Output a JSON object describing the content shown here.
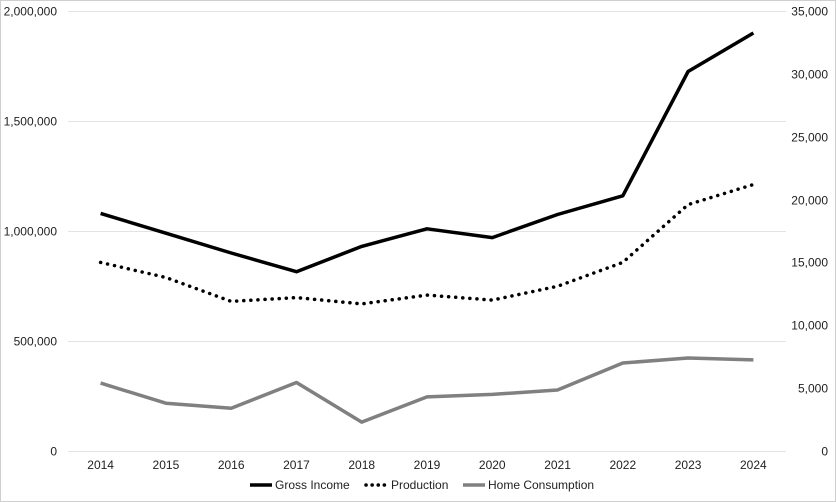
{
  "chart_data": {
    "type": "line",
    "title": "",
    "xlabel": "",
    "ylabel": "",
    "categories": [
      "2014",
      "2015",
      "2016",
      "2017",
      "2018",
      "2019",
      "2020",
      "2021",
      "2022",
      "2023",
      "2024"
    ],
    "y_left": {
      "range": [
        0,
        2000000
      ],
      "ticks": [
        0,
        500000,
        1000000,
        1500000,
        2000000
      ],
      "tick_labels": [
        "0",
        "500,000",
        "1,000,000",
        "1,500,000",
        "2,000,000"
      ]
    },
    "y_right": {
      "range": [
        0,
        35000
      ],
      "ticks": [
        0,
        5000,
        10000,
        15000,
        20000,
        25000,
        30000,
        35000
      ],
      "tick_labels": [
        "0",
        "5,000",
        "10,000",
        "15,000",
        "20,000",
        "25,000",
        "30,000",
        "35,000"
      ]
    },
    "grid": true,
    "legend_position": "bottom",
    "series": [
      {
        "name": "Gross Income",
        "axis": "left",
        "style": "solid",
        "color": "#000000",
        "values": [
          1080000,
          990000,
          900000,
          815000,
          930000,
          1010000,
          970000,
          1075000,
          1160000,
          1725000,
          1900000
        ]
      },
      {
        "name": "Production",
        "axis": "right",
        "style": "dotted",
        "color": "#000000",
        "values": [
          15000,
          13800,
          11900,
          12200,
          11700,
          12400,
          12000,
          13100,
          15000,
          19600,
          21200
        ]
      },
      {
        "name": "Home Consumption",
        "axis": "right",
        "style": "solid",
        "color": "#808080",
        "values": [
          5400,
          3800,
          3400,
          5450,
          2300,
          4300,
          4500,
          4850,
          7000,
          7400,
          7250
        ]
      }
    ]
  }
}
